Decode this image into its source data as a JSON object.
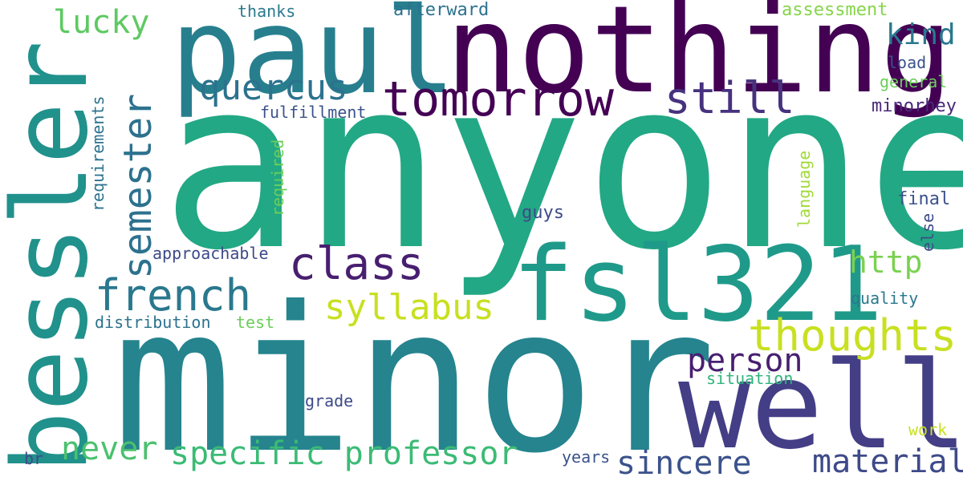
{
  "palette": {
    "purple": "#440154",
    "indigo": "#46327e",
    "blue": "#365c8d",
    "teal": "#277f8e",
    "teal_dark": "#21918c",
    "green_teal": "#1fa187",
    "green": "#4ac16d",
    "lime": "#a0da39",
    "yellow": "#c8e020"
  },
  "words": {
    "anyone": "anyone",
    "minor": "minor",
    "nothing": "nothing",
    "paul": "paul",
    "bessler": "bessler",
    "fsl321": "fsl321",
    "well": "well",
    "tomorrow": "tomorrow",
    "thoughts": "thoughts",
    "class": "class",
    "french": "french",
    "semester": "semester",
    "quercus": "quercus",
    "still": "still",
    "syllabus": "syllabus",
    "specific": "specific",
    "professor": "professor",
    "material": "material",
    "sincere": "sincere",
    "never": "never",
    "person": "person",
    "http": "http",
    "kind": "kind",
    "lucky": "lucky",
    "thanks": "thanks",
    "afterward": "afterward",
    "assessment": "assessment",
    "load": "load",
    "general": "general",
    "minorhey": "minorhey",
    "fulfillment": "fulfillment",
    "requirements": "requirements",
    "required": "required",
    "language": "language",
    "final": "final",
    "else": "else",
    "guys": "guys",
    "approachable": "approachable",
    "quality": "quality",
    "distribution": "distribution",
    "test": "test",
    "situation": "situation",
    "grade": "grade",
    "work": "work",
    "years": "years",
    "br": "br"
  }
}
